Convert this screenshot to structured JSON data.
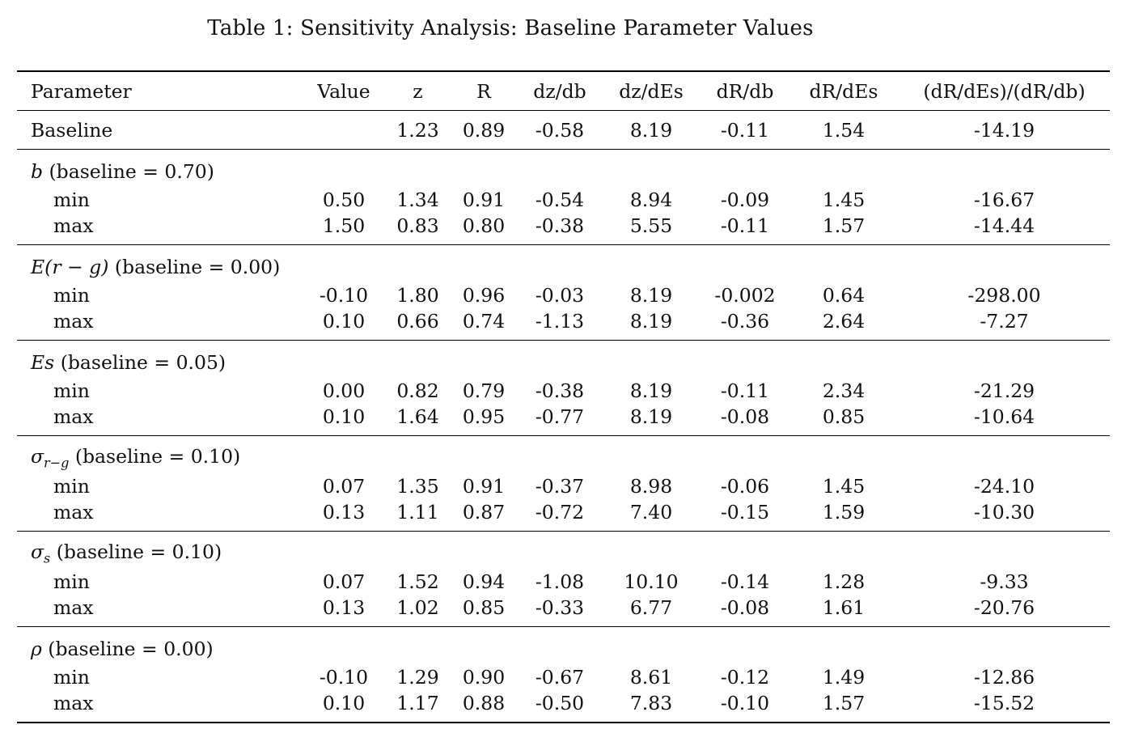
{
  "caption": "Table 1: Sensitivity Analysis: Baseline Parameter Values",
  "columns": [
    "Parameter",
    "Value",
    "z",
    "R",
    "dz/db",
    "dz/dEs",
    "dR/db",
    "dR/dEs",
    "(dR/dEs)/(dR/db)"
  ],
  "baseline": {
    "label": "Baseline",
    "value": "",
    "cells": [
      "1.23",
      "0.89",
      "-0.58",
      "8.19",
      "-0.11",
      "1.54",
      "-14.19"
    ]
  },
  "groups": [
    {
      "symbol": "b",
      "subscript": "",
      "suffix": " (baseline = 0.70)",
      "rows": [
        {
          "label": "min",
          "value": "0.50",
          "cells": [
            "1.34",
            "0.91",
            "-0.54",
            "8.94",
            "-0.09",
            "1.45",
            "-16.67"
          ]
        },
        {
          "label": "max",
          "value": "1.50",
          "cells": [
            "0.83",
            "0.80",
            "-0.38",
            "5.55",
            "-0.11",
            "1.57",
            "-14.44"
          ]
        }
      ]
    },
    {
      "symbol": "E(r − g)",
      "subscript": "",
      "suffix": " (baseline = 0.00)",
      "rows": [
        {
          "label": "min",
          "value": "-0.10",
          "cells": [
            "1.80",
            "0.96",
            "-0.03",
            "8.19",
            "-0.002",
            "0.64",
            "-298.00"
          ]
        },
        {
          "label": "max",
          "value": "0.10",
          "cells": [
            "0.66",
            "0.74",
            "-1.13",
            "8.19",
            "-0.36",
            "2.64",
            "-7.27"
          ]
        }
      ]
    },
    {
      "symbol": "Es",
      "subscript": "",
      "suffix": " (baseline = 0.05)",
      "rows": [
        {
          "label": "min",
          "value": "0.00",
          "cells": [
            "0.82",
            "0.79",
            "-0.38",
            "8.19",
            "-0.11",
            "2.34",
            "-21.29"
          ]
        },
        {
          "label": "max",
          "value": "0.10",
          "cells": [
            "1.64",
            "0.95",
            "-0.77",
            "8.19",
            "-0.08",
            "0.85",
            "-10.64"
          ]
        }
      ]
    },
    {
      "symbol": "σ",
      "subscript": "r−g",
      "suffix": " (baseline = 0.10)",
      "rows": [
        {
          "label": "min",
          "value": "0.07",
          "cells": [
            "1.35",
            "0.91",
            "-0.37",
            "8.98",
            "-0.06",
            "1.45",
            "-24.10"
          ]
        },
        {
          "label": "max",
          "value": "0.13",
          "cells": [
            "1.11",
            "0.87",
            "-0.72",
            "7.40",
            "-0.15",
            "1.59",
            "-10.30"
          ]
        }
      ]
    },
    {
      "symbol": "σ",
      "subscript": "s",
      "suffix": " (baseline = 0.10)",
      "rows": [
        {
          "label": "min",
          "value": "0.07",
          "cells": [
            "1.52",
            "0.94",
            "-1.08",
            "10.10",
            "-0.14",
            "1.28",
            "-9.33"
          ]
        },
        {
          "label": "max",
          "value": "0.13",
          "cells": [
            "1.02",
            "0.85",
            "-0.33",
            "6.77",
            "-0.08",
            "1.61",
            "-20.76"
          ]
        }
      ]
    },
    {
      "symbol": "ρ",
      "subscript": "",
      "suffix": " (baseline = 0.00)",
      "rows": [
        {
          "label": "min",
          "value": "-0.10",
          "cells": [
            "1.29",
            "0.90",
            "-0.67",
            "8.61",
            "-0.12",
            "1.49",
            "-12.86"
          ]
        },
        {
          "label": "max",
          "value": "0.10",
          "cells": [
            "1.17",
            "0.88",
            "-0.50",
            "7.83",
            "-0.10",
            "1.57",
            "-15.52"
          ]
        }
      ]
    }
  ]
}
